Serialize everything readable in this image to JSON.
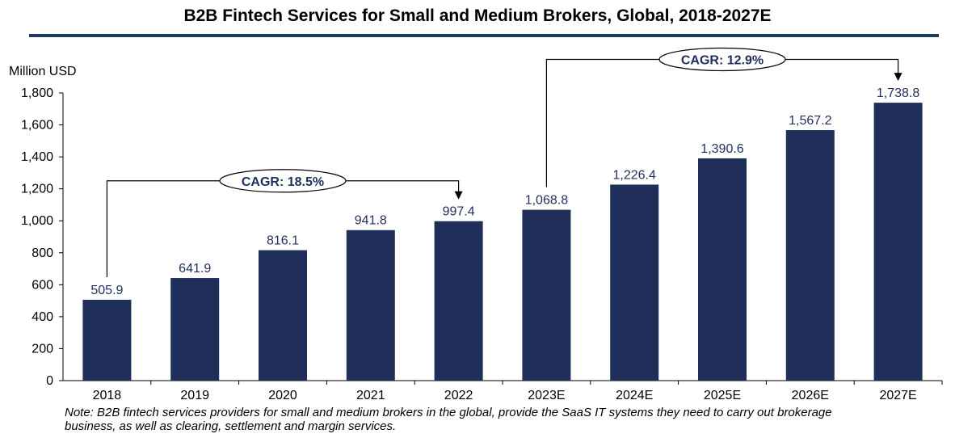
{
  "chart_data": {
    "type": "bar",
    "title": "B2B Fintech Services for Small and Medium Brokers, Global, 2018-2027E",
    "unit_label": "Million USD",
    "xlabel": "",
    "ylabel": "",
    "categories": [
      "2018",
      "2019",
      "2020",
      "2021",
      "2022",
      "2023E",
      "2024E",
      "2025E",
      "2026E",
      "2027E"
    ],
    "values": [
      505.9,
      641.9,
      816.1,
      941.8,
      997.4,
      1068.8,
      1226.4,
      1390.6,
      1567.2,
      1738.8
    ],
    "value_labels": [
      "505.9",
      "641.9",
      "816.1",
      "941.8",
      "997.4",
      "1,068.8",
      "1,226.4",
      "1,390.6",
      "1,567.2",
      "1,738.8"
    ],
    "ylim": [
      0,
      1800
    ],
    "y_ticks": [
      0,
      200,
      400,
      600,
      800,
      1000,
      1200,
      1400,
      1600,
      1800
    ],
    "y_tick_labels": [
      "0",
      "200",
      "400",
      "600",
      "800",
      "1,000",
      "1,200",
      "1,400",
      "1,600",
      "1,800"
    ],
    "grid": false,
    "legend": "none",
    "annotations": [
      {
        "label": "CAGR: 18.5%",
        "from_category": "2018",
        "to_category": "2022",
        "level": 1250
      },
      {
        "label": "CAGR: 12.9%",
        "from_category": "2023E",
        "to_category": "2027E",
        "level": 2010
      }
    ],
    "note": "Note: B2B fintech services providers for small and medium brokers in the global, provide the SaaS IT systems they need to carry out brokerage business, as well as clearing, settlement and margin services.",
    "colors": {
      "bar": "#1f2f5a",
      "value_label": "#1f2f5a",
      "title_rule": "#1f3a5f",
      "axis": "#000000"
    }
  }
}
